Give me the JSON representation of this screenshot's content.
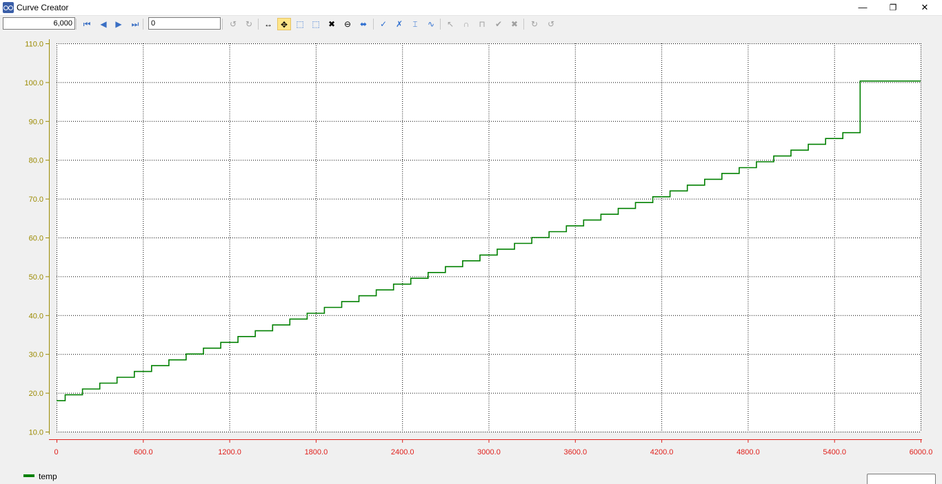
{
  "window": {
    "title": "Curve Creator",
    "minimize": "—",
    "restore": "❐",
    "close": "✕"
  },
  "toolbar": {
    "duration_value": "6,000",
    "position_value": "0",
    "buttons": [
      {
        "name": "first-frame-icon",
        "glyph": "⏮",
        "color": "#3a6fc4",
        "enabled": true
      },
      {
        "name": "prev-frame-icon",
        "glyph": "◀",
        "color": "#3a6fc4",
        "enabled": true
      },
      {
        "name": "next-frame-icon",
        "glyph": "▶",
        "color": "#3a6fc4",
        "enabled": true
      },
      {
        "name": "last-frame-icon",
        "glyph": "⏭",
        "color": "#3a6fc4",
        "enabled": true
      },
      {
        "name": "undo-icon",
        "glyph": "↺",
        "color": "#a0a0a0",
        "enabled": false
      },
      {
        "name": "redo-icon",
        "glyph": "↻",
        "color": "#a0a0a0",
        "enabled": false
      },
      {
        "name": "pan-icon",
        "glyph": "↔",
        "color": "#000000",
        "enabled": true
      },
      {
        "name": "move-icon",
        "glyph": "✥",
        "color": "#000000",
        "enabled": true,
        "active": true
      },
      {
        "name": "zoom-x-icon",
        "glyph": "⬚",
        "color": "#2f6fd0",
        "enabled": true
      },
      {
        "name": "zoom-y-icon",
        "glyph": "⬚",
        "color": "#2f6fd0",
        "enabled": true
      },
      {
        "name": "zoom-reset-icon",
        "glyph": "✖",
        "color": "#000000",
        "enabled": true
      },
      {
        "name": "zoom-max-icon",
        "glyph": "⊖",
        "color": "#000000",
        "enabled": true
      },
      {
        "name": "fit-icon",
        "glyph": "⬌",
        "color": "#2f6fd0",
        "enabled": true
      },
      {
        "name": "add-point-icon",
        "glyph": "✓",
        "color": "#2f6fd0",
        "enabled": true
      },
      {
        "name": "remove-point-icon",
        "glyph": "✗",
        "color": "#2f6fd0",
        "enabled": true
      },
      {
        "name": "scale-curve-icon",
        "glyph": "⌶",
        "color": "#2f6fd0",
        "enabled": true
      },
      {
        "name": "smooth-curve-icon",
        "glyph": "∿",
        "color": "#2f6fd0",
        "enabled": true
      },
      {
        "name": "select-point-icon",
        "glyph": "↖",
        "color": "#a0a0a0",
        "enabled": false
      },
      {
        "name": "curve-shape-icon",
        "glyph": "∩",
        "color": "#a0a0a0",
        "enabled": false
      },
      {
        "name": "step-shape-icon",
        "glyph": "⊓",
        "color": "#a0a0a0",
        "enabled": false
      },
      {
        "name": "apply-icon",
        "glyph": "✔",
        "color": "#a0a0a0",
        "enabled": false
      },
      {
        "name": "cancel-icon",
        "glyph": "✖",
        "color": "#a0a0a0",
        "enabled": false
      },
      {
        "name": "sync-icon",
        "glyph": "↻",
        "color": "#a0a0a0",
        "enabled": false
      },
      {
        "name": "sync-all-icon",
        "glyph": "↺",
        "color": "#a0a0a0",
        "enabled": false
      }
    ]
  },
  "chart_data": {
    "type": "line",
    "series": [
      {
        "name": "temp",
        "color": "#008000",
        "step": true,
        "start": {
          "x": 0,
          "y": 18.0
        },
        "step_x": 120,
        "step_y": 1.5,
        "plateau_from_x": 5580,
        "plateau_y": 100.3,
        "end_x": 6000
      }
    ],
    "xlim": [
      0,
      6000
    ],
    "ylim": [
      10,
      110
    ],
    "x_ticks": [
      "0",
      "600.0",
      "1200.0",
      "1800.0",
      "2400.0",
      "3000.0",
      "3600.0",
      "4200.0",
      "4800.0",
      "5400.0",
      "6000.0"
    ],
    "x_tick_values": [
      0,
      600,
      1200,
      1800,
      2400,
      3000,
      3600,
      4200,
      4800,
      5400,
      6000
    ],
    "y_ticks": [
      "10.0",
      "20.0",
      "30.0",
      "40.0",
      "50.0",
      "60.0",
      "70.0",
      "80.0",
      "90.0",
      "100.0",
      "110.0"
    ],
    "y_tick_values": [
      10,
      20,
      30,
      40,
      50,
      60,
      70,
      80,
      90,
      100,
      110
    ],
    "grid": true,
    "legend_placement": "bottom-left",
    "x_axis_color": "#e0201c",
    "y_axis_color": "#9b8a00"
  },
  "legend": {
    "label": "temp"
  }
}
